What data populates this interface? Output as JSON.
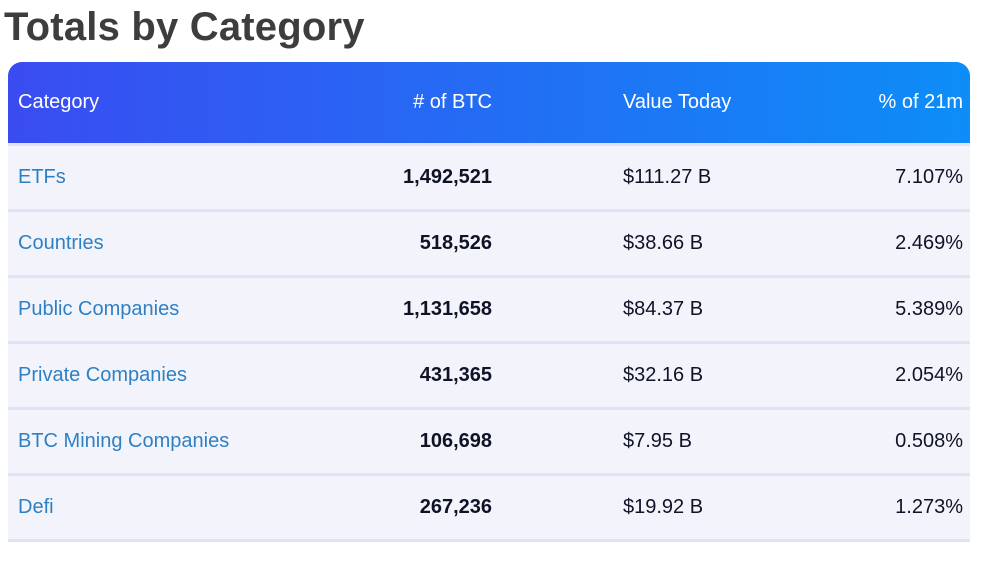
{
  "page_title": "Totals by Category",
  "table": {
    "columns": [
      {
        "id": "category",
        "label": "Category"
      },
      {
        "id": "btc",
        "label": "# of BTC"
      },
      {
        "id": "value",
        "label": "Value Today"
      },
      {
        "id": "pct",
        "label": "% of 21m"
      }
    ],
    "rows": [
      {
        "category": "ETFs",
        "btc": "1,492,521",
        "value": "$111.27 B",
        "pct": "7.107%"
      },
      {
        "category": "Countries",
        "btc": "518,526",
        "value": "$38.66 B",
        "pct": "2.469%"
      },
      {
        "category": "Public Companies",
        "btc": "1,131,658",
        "value": "$84.37 B",
        "pct": "5.389%"
      },
      {
        "category": "Private Companies",
        "btc": "431,365",
        "value": "$32.16 B",
        "pct": "2.054%"
      },
      {
        "category": "BTC Mining Companies",
        "btc": "106,698",
        "value": "$7.95 B",
        "pct": "0.508%"
      },
      {
        "category": "Defi",
        "btc": "267,236",
        "value": "$19.92 B",
        "pct": "1.273%"
      }
    ]
  },
  "colors": {
    "header_gradient_left": "#3a4cf1",
    "header_gradient_right": "#0d8df7",
    "header_text": "#ffffff",
    "row_background": "#f3f4fb",
    "divider": "#dfe3f8",
    "category_link": "#2e80c5",
    "number_text": "#0f1326",
    "title_text": "#3d3d3d"
  }
}
